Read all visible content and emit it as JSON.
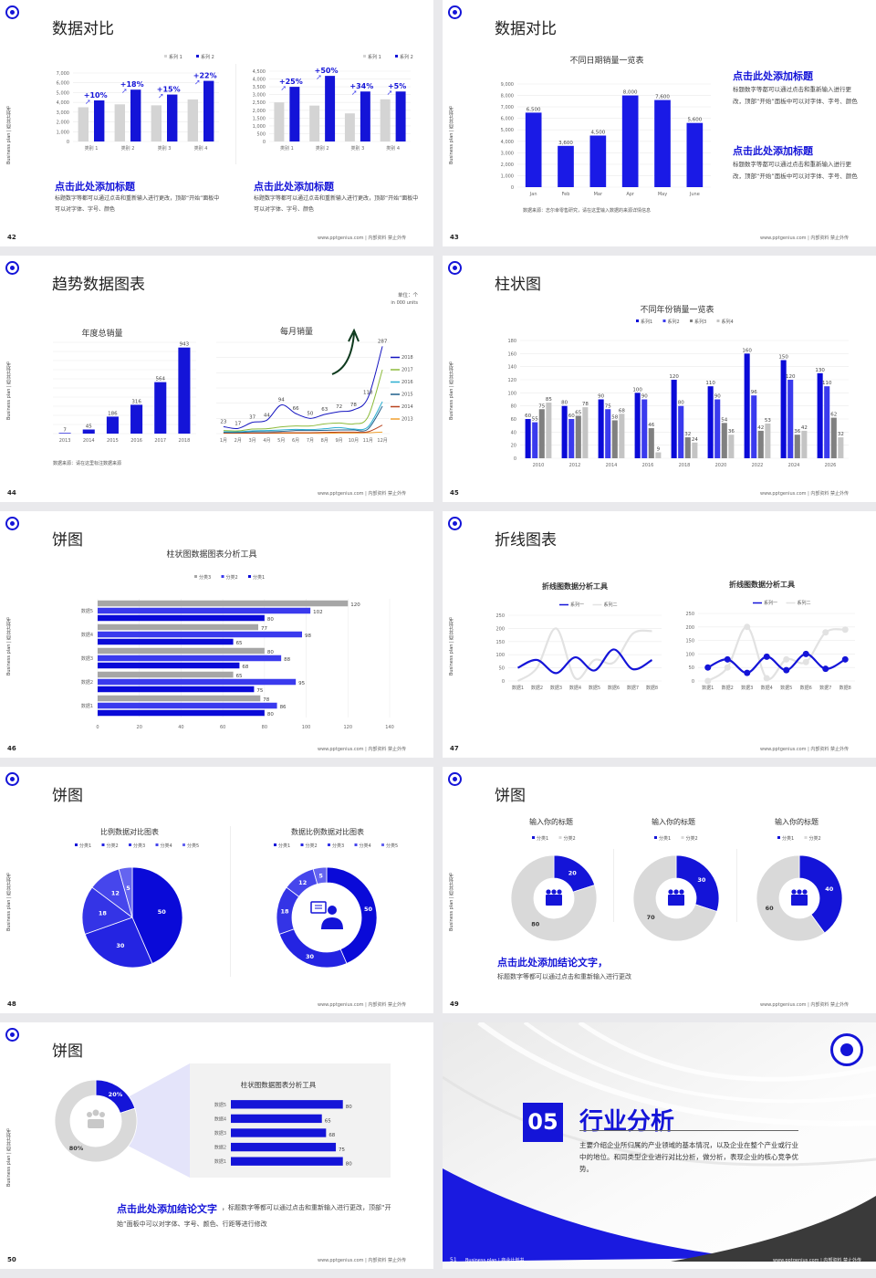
{
  "common": {
    "side_text": "Business plan | 商业计划书",
    "footer": "www.pptgenius.com | 内部资料 禁止外传"
  },
  "colors": {
    "blue": "#1414d8",
    "blue2": "#3a3aee",
    "gray_dark": "#808080",
    "gray_light": "#c4c4c4",
    "donut_gray": "#d9d9d9"
  },
  "s42": {
    "title": "数据对比",
    "page": "42",
    "left": {
      "heading": "点击此处添加标题",
      "body": "标题数字等都可以通过点击和重新输入进行更改，顶部“开始”面板中可以对字体、字号、颜色"
    },
    "right": {
      "heading": "点击此处添加标题",
      "body": "标题数字等都可以通过点击和重新输入进行更改，顶部“开始”面板中可以对字体、字号、颜色"
    }
  },
  "s43": {
    "title": "数据对比",
    "page": "43",
    "chart_title": "不同日期销量一览表",
    "source": "数据来源：志尔幸零售研究，请在这里输入数据的来源详情信息",
    "blocks": [
      {
        "heading": "点击此处添加标题",
        "body": "标题数字等都可以通过点击和重新输入进行更改，顶部“开始”面板中可以对字体、字号、颜色"
      },
      {
        "heading": "点击此处添加标题",
        "body": "标题数字等都可以通过点击和重新输入进行更改，顶部“开始”面板中可以对字体、字号、颜色"
      }
    ]
  },
  "s44": {
    "title": "趋势数据图表",
    "page": "44",
    "unit": "单位：个",
    "unit_en": "in 000 units",
    "left_title": "年度总销量",
    "right_title": "每月销量",
    "source": "数据来源：请在这里标注数据来源"
  },
  "s45": {
    "title": "柱状图",
    "page": "45",
    "chart_title": "不同年份销量一览表"
  },
  "s46": {
    "title": "饼图",
    "page": "46",
    "chart_title": "柱状图数据图表分析工具"
  },
  "s47": {
    "title": "折线图表",
    "page": "47",
    "left_title": "折线图数据分析工具",
    "right_title": "折线图数据分析工具"
  },
  "s48": {
    "title": "饼图",
    "page": "48",
    "left_title": "比例数据对比图表",
    "right_title": "数据比例数据对比图表"
  },
  "s49": {
    "title": "饼图",
    "page": "49",
    "titles": [
      "输入你的标题",
      "输入你的标题",
      "输入你的标题"
    ],
    "conclusion": "点击此处添加结论文字，",
    "body": "标题数字等都可以通过点击和重新输入进行更改"
  },
  "s50": {
    "title": "饼图",
    "page": "50",
    "panel_title": "柱状图数据图表分析工具",
    "conclusion": "点击此处添加结论文字",
    "body": "，标题数字等都可以通过点击和重新输入进行更改，顶部“开始”面板中可以对字体、字号、颜色、行距等进行修改"
  },
  "s51": {
    "number": "05",
    "title": "行业分析",
    "page": "51",
    "brand": "Business plan | 商业计划书",
    "body": "主要介绍企业所归属的产业领域的基本情况，以及企业在整个产业或行业中的地位。和同类型企业进行对比分析，做分析，表现企业的核心竞争优势。"
  },
  "chart_data": [
    {
      "type": "bar",
      "categories": [
        "类别 1",
        "类别 2",
        "类别 3",
        "类别 4"
      ],
      "ylim": [
        0,
        7000
      ],
      "ystep": 1000,
      "comma": true,
      "series": [
        {
          "name": "系列 1",
          "values": [
            3500,
            3800,
            3700,
            4300
          ],
          "color": "#d4d4d4"
        },
        {
          "name": "系列 2",
          "values": [
            4200,
            5300,
            4800,
            6200
          ],
          "color": "#1414d8"
        }
      ],
      "annotations": [
        "+10%",
        "+18%",
        "+15%",
        "+22%"
      ]
    },
    {
      "type": "bar",
      "categories": [
        "类别 1",
        "类别 2",
        "类别 3",
        "类别 4"
      ],
      "ylim": [
        0,
        4500
      ],
      "ystep": 500,
      "comma": true,
      "series": [
        {
          "name": "系列 1",
          "values": [
            2500,
            2300,
            1800,
            2700
          ],
          "color": "#d4d4d4"
        },
        {
          "name": "系列 2",
          "values": [
            3500,
            4200,
            3200,
            3200
          ],
          "color": "#1414d8"
        }
      ],
      "annotations": [
        "+25%",
        "+50%",
        "+34%",
        "+5%"
      ]
    },
    {
      "type": "bar",
      "title": "不同日期销量一览表",
      "categories": [
        "Jan",
        "Feb",
        "Mar",
        "Apr",
        "May",
        "June"
      ],
      "ylim": [
        0,
        9000
      ],
      "ystep": 1000,
      "comma": true,
      "data_labels": true,
      "series": [
        {
          "values": [
            6500,
            3600,
            4500,
            8000,
            7600,
            5600
          ],
          "color": "#1a1ae6"
        }
      ]
    },
    {
      "type": "bar",
      "title": "年度总销量",
      "categories": [
        "2013",
        "2014",
        "2015",
        "2016",
        "2017",
        "2018"
      ],
      "ylim": [
        0,
        1000
      ],
      "ystep": 100,
      "y_labels": false,
      "data_labels": true,
      "series": [
        {
          "values": [
            7,
            45,
            186,
            316,
            564,
            943
          ],
          "color": "#1414d8"
        }
      ]
    },
    {
      "type": "line",
      "title": "每月销量",
      "categories": [
        "1月",
        "2月",
        "3月",
        "4月",
        "5月",
        "6月",
        "7月",
        "8月",
        "9月",
        "10月",
        "11月",
        "12月"
      ],
      "ylim": [
        0,
        300
      ],
      "ystep": 50,
      "y_labels": false,
      "label_series": 0,
      "series": [
        {
          "name": "2018",
          "values": [
            23,
            17,
            37,
            44,
            94,
            66,
            50,
            63,
            72,
            78,
            118,
            287
          ],
          "color": "#1414c0"
        },
        {
          "name": "2017",
          "values": [
            10,
            9,
            15,
            16,
            22,
            25,
            25,
            32,
            35,
            32,
            55,
            210
          ],
          "color": "#8dbb3c"
        },
        {
          "name": "2016",
          "values": [
            6,
            6,
            9,
            10,
            12,
            14,
            13,
            16,
            20,
            15,
            22,
            105
          ],
          "color": "#2aaed0"
        },
        {
          "name": "2015",
          "values": [
            4,
            4,
            6,
            6,
            7,
            10,
            10,
            11,
            12,
            12,
            15,
            90
          ],
          "color": "#1f5f8b"
        },
        {
          "name": "2014",
          "values": [
            2,
            2,
            2,
            2,
            3,
            3,
            3,
            4,
            5,
            5,
            6,
            28
          ],
          "color": "#b8431e"
        },
        {
          "name": "2013",
          "values": [
            1,
            1,
            1,
            1,
            1,
            1,
            1,
            1,
            2,
            2,
            3,
            5
          ],
          "color": "#f0a030"
        }
      ]
    },
    {
      "type": "bar",
      "title": "不同年份销量一览表",
      "categories": [
        "2010",
        "2012",
        "2014",
        "2016",
        "2018",
        "2020",
        "2022",
        "2024",
        "2026"
      ],
      "ylim": [
        0,
        180
      ],
      "ystep": 20,
      "data_labels": true,
      "legend": "top",
      "series": [
        {
          "name": "系列1",
          "values": [
            60,
            80,
            90,
            100,
            120,
            110,
            160,
            150,
            130
          ],
          "color": "#0a0ad8"
        },
        {
          "name": "系列2",
          "values": [
            55,
            60,
            75,
            90,
            80,
            90,
            96,
            120,
            110
          ],
          "color": "#3a3aee"
        },
        {
          "name": "系列3",
          "values": [
            75,
            65,
            58,
            46,
            32,
            54,
            42,
            36,
            62
          ],
          "color": "#808080"
        },
        {
          "name": "系列4",
          "values": [
            85,
            78,
            68,
            9,
            24,
            36,
            53,
            42,
            32
          ],
          "color": "#c4c4c4"
        }
      ]
    },
    {
      "type": "hbar",
      "title": "柱状图数据图表分析工具",
      "categories": [
        "数据5",
        "数据4",
        "数据3",
        "数据2",
        "数据1"
      ],
      "xlim": [
        0,
        140
      ],
      "xstep": 20,
      "legend": "top",
      "series": [
        {
          "name": "分类3",
          "values": [
            120,
            77,
            80,
            65,
            78
          ],
          "color": "#a6a6a6"
        },
        {
          "name": "分类2",
          "values": [
            102,
            98,
            88,
            95,
            86
          ],
          "color": "#3a3aee"
        },
        {
          "name": "分类1",
          "values": [
            80,
            65,
            68,
            75,
            80
          ],
          "color": "#0a0ad8"
        }
      ]
    },
    {
      "type": "line",
      "title": "折线图数据分析工具",
      "categories": [
        "数据1",
        "数据2",
        "数据3",
        "数据4",
        "数据5",
        "数据6",
        "数据7",
        "数据8"
      ],
      "ylim": [
        0,
        250
      ],
      "ystep": 50,
      "legend": "top",
      "series": [
        {
          "name": "系列一",
          "values": [
            50,
            80,
            30,
            90,
            40,
            120,
            45,
            80
          ],
          "color": "#1414d8"
        },
        {
          "name": "系列二",
          "values": [
            0,
            50,
            200,
            10,
            80,
            70,
            180,
            190
          ],
          "color": "#e2e2e2"
        }
      ]
    },
    {
      "type": "line",
      "title": "折线图数据分析工具",
      "categories": [
        "数据1",
        "数据2",
        "数据3",
        "数据4",
        "数据5",
        "数据6",
        "数据7",
        "数据8"
      ],
      "ylim": [
        0,
        250
      ],
      "ystep": 50,
      "legend": "top",
      "markers": true,
      "series": [
        {
          "name": "系列一",
          "values": [
            50,
            80,
            30,
            90,
            40,
            100,
            45,
            80
          ],
          "color": "#1414d8"
        },
        {
          "name": "系列二",
          "values": [
            0,
            50,
            200,
            10,
            80,
            70,
            180,
            190
          ],
          "color": "#e2e2e2"
        }
      ]
    },
    {
      "type": "pie",
      "title": "比例数据对比图表",
      "labels": [
        "分类1",
        "分类2",
        "分类3",
        "分类4",
        "分类5"
      ],
      "values": [
        50,
        30,
        18,
        12,
        5
      ],
      "colors": [
        "#0a0ad8",
        "#2424e2",
        "#3434e6",
        "#4646ec",
        "#6464f0"
      ]
    },
    {
      "type": "pie",
      "donut": true,
      "title": "数据比例数据对比图表",
      "labels": [
        "分类1",
        "分类2",
        "分类3",
        "分类4",
        "分类5"
      ],
      "values": [
        50,
        30,
        18,
        12,
        5
      ],
      "colors": [
        "#0a0ad8",
        "#2424e2",
        "#3434e6",
        "#4646ec",
        "#6464f0"
      ]
    },
    {
      "type": "pie",
      "donut": true,
      "title": "输入你的标题",
      "labels": [
        "分类1",
        "分类2"
      ],
      "values": [
        20,
        80
      ],
      "colors": [
        "#1414d8",
        "#d9d9d9"
      ]
    },
    {
      "type": "pie",
      "donut": true,
      "title": "输入你的标题",
      "labels": [
        "分类1",
        "分类2"
      ],
      "values": [
        30,
        70
      ],
      "colors": [
        "#1414d8",
        "#d9d9d9"
      ]
    },
    {
      "type": "pie",
      "donut": true,
      "title": "输入你的标题",
      "labels": [
        "分类1",
        "分类2"
      ],
      "values": [
        40,
        60
      ],
      "colors": [
        "#1414d8",
        "#d9d9d9"
      ]
    },
    {
      "type": "pie",
      "donut": true,
      "labels": [
        "20%",
        "80%"
      ],
      "values": [
        20,
        80
      ],
      "colors": [
        "#1414d8",
        "#d9d9d9"
      ],
      "value_text": [
        "20%",
        "80%"
      ]
    },
    {
      "type": "hbar",
      "title": "柱状图数据图表分析工具",
      "categories": [
        "数据5",
        "数据4",
        "数据3",
        "数据2",
        "数据1"
      ],
      "xlim": [
        0,
        88
      ],
      "series": [
        {
          "values": [
            80,
            65,
            68,
            75,
            80
          ],
          "color": "#1414d8"
        }
      ]
    }
  ]
}
